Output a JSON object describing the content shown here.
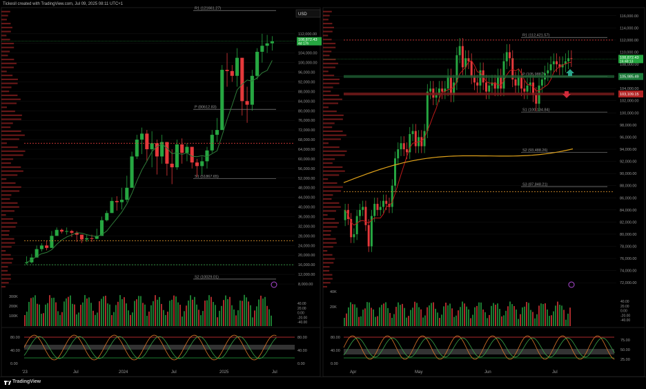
{
  "header": {
    "text": "Tickesll created with TradingView.com, Jul 09, 2025 08:11 UTC+1"
  },
  "footer": {
    "brand": "TradingView",
    "logo_icon": "tradingview-logo-icon"
  },
  "colors": {
    "bg": "#000000",
    "up": "#26a641",
    "down": "#e5393b",
    "grid": "#151515",
    "pivot_line": "#cfcfcf",
    "red_dotted": "#e03a3a",
    "orange": "#f0a030",
    "price_badge": "#26a641",
    "highlight_green": "#1e5e32",
    "highlight_red": "#7a1c1c",
    "profile": "#8a1f1f",
    "gold_ma": "#e0a21a"
  },
  "chart_data": [
    {
      "id": "left-price",
      "type": "candlestick",
      "currency": "USD",
      "timeframe_labels": [
        "'23",
        "Jul",
        "2024",
        "Jul",
        "2025",
        "Jul"
      ],
      "y_ticks": [
        8000,
        12000,
        16000,
        20000,
        24000,
        28000,
        32000,
        36000,
        40000,
        44000,
        48000,
        52000,
        56000,
        60000,
        64000,
        68000,
        72000,
        76000,
        80000,
        84000,
        88000,
        92000,
        96000,
        100000,
        104000,
        108000,
        112000
      ],
      "y_tick_labels": [
        "8,000.00",
        "12,000.00",
        "16,000.00",
        "20,000.00",
        "24,000.00",
        "28,000.00",
        "32,000.00",
        "36,000.00",
        "40,000.00",
        "44,000.00",
        "48,000.00",
        "52,000.00",
        "56,000.00",
        "60,000.00",
        "64,000.00",
        "68,000.00",
        "72,000.00",
        "76,000.00",
        "80,000.00",
        "84,000.00",
        "88,000.00",
        "92,000.00",
        "96,000.00",
        "100,000.00",
        "104,000.00",
        "108,000.00",
        "112,000.00"
      ],
      "ylim": [
        6000,
        122000
      ],
      "pivot_labels": [
        {
          "text": "R1 (121661.27)",
          "value": 121661.27
        },
        {
          "text": "P (80612.83)",
          "value": 80612.83
        },
        {
          "text": "S1 (51867.65)",
          "value": 51867.65
        },
        {
          "text": "S2 (10029.01)",
          "value": 10029.01
        }
      ],
      "price_badge": {
        "price": "108,872.43",
        "countdown": "4d 17h",
        "value": 108872.43
      },
      "closes": [
        17000,
        19000,
        22500,
        24000,
        23000,
        28000,
        30500,
        29800,
        30000,
        29300,
        28500,
        26500,
        27000,
        26800,
        28000,
        34500,
        37500,
        42500,
        42000,
        43000,
        48000,
        61000,
        68000,
        70500,
        64000,
        66500,
        61000,
        67000,
        58000,
        56500,
        66000,
        62500,
        65000,
        58500,
        57000,
        59000,
        63500,
        70000,
        72000,
        97000,
        96500,
        94500,
        102000,
        84000,
        82500,
        94500,
        104500,
        107000,
        108000,
        108872
      ],
      "highs": [
        19500,
        20500,
        24000,
        25000,
        26000,
        30000,
        31500,
        31000,
        31500,
        30500,
        30000,
        28500,
        28500,
        28500,
        31000,
        36000,
        38500,
        44000,
        44500,
        48000,
        53000,
        63000,
        70000,
        73000,
        72000,
        71500,
        68000,
        70000,
        65000,
        64000,
        68000,
        68500,
        66500,
        65000,
        60000,
        61000,
        65000,
        72000,
        77000,
        99000,
        104000,
        99000,
        106000,
        102000,
        90000,
        97000,
        106000,
        112000,
        111500,
        111000
      ],
      "lows": [
        16000,
        16500,
        19500,
        21500,
        22000,
        23000,
        29000,
        29000,
        28500,
        27500,
        25500,
        25000,
        25500,
        25500,
        26500,
        28000,
        34000,
        37500,
        38500,
        39000,
        42000,
        48000,
        60000,
        62000,
        59000,
        56500,
        53500,
        58000,
        53000,
        49500,
        55500,
        58000,
        59000,
        56000,
        52500,
        53500,
        56000,
        62500,
        67000,
        72000,
        90000,
        92000,
        90000,
        78000,
        75000,
        80000,
        93000,
        100000,
        104000,
        105000
      ],
      "volume_axis": [
        "300K",
        "200K",
        "100K"
      ],
      "rsi_axis": [
        "80.00",
        "40.00",
        "0.00"
      ],
      "right_mini_axis": [
        "40.00",
        "20.00",
        "0.00",
        "-20.00",
        "-40.00"
      ],
      "right_rsi_axis": [
        "80.00",
        "40.00",
        "0.00"
      ]
    },
    {
      "id": "right-price",
      "type": "candlestick",
      "timeframe_labels": [
        "Apr",
        "May",
        "Jun",
        "Jul"
      ],
      "y_ticks": [
        72000,
        74000,
        76000,
        78000,
        80000,
        82000,
        84000,
        86000,
        88000,
        90000,
        92000,
        94000,
        96000,
        98000,
        100000,
        102000,
        104000,
        106000,
        108000,
        110000,
        112000,
        114000,
        116000
      ],
      "y_tick_labels": [
        "72,000.00",
        "74,000.00",
        "76,000.00",
        "78,000.00",
        "80,000.00",
        "82,000.00",
        "84,000.00",
        "86,000.00",
        "88,000.00",
        "90,000.00",
        "92,000.00",
        "94,000.00",
        "96,000.00",
        "98,000.00",
        "100,000.00",
        "102,000.00",
        "104,000.00",
        "106,000.00",
        "108,000.00",
        "110,000.00",
        "112,000.00",
        "114,000.00",
        "116,000.00"
      ],
      "ylim": [
        71000,
        117000
      ],
      "pivot_labels": [
        {
          "text": "R1 (112,421.57)",
          "value": 112421.57
        },
        {
          "text": "S1 (100,134.84)",
          "value": 100134.84
        },
        {
          "text": "S2 (93,488.26)",
          "value": 93488.26
        },
        {
          "text": "S3 (87,848.21)",
          "value": 87848.21
        },
        {
          "text": "P (105,988.?)",
          "value": 105988
        }
      ],
      "price_badge": {
        "price": "108,872.43",
        "countdown": "16:48:13",
        "value": 108872.43
      },
      "green_level": {
        "price": "105,985.49",
        "value": 105985.49
      },
      "red_level": {
        "price": "103,109.15",
        "value": 103109.15
      },
      "closes": [
        84000,
        82500,
        79500,
        80000,
        83000,
        84000,
        84500,
        81500,
        78000,
        83000,
        85000,
        84000,
        84500,
        85500,
        85000,
        84500,
        88000,
        92500,
        94000,
        95000,
        94000,
        93500,
        96500,
        97000,
        94500,
        96000,
        94500,
        97000,
        103500,
        104000,
        102500,
        103000,
        104000,
        103500,
        104000,
        106000,
        103000,
        105000,
        109500,
        111000,
        107500,
        109000,
        108500,
        106000,
        105000,
        104500,
        107000,
        105000,
        103500,
        104500,
        105000,
        104000,
        106000,
        104000,
        108500,
        110000,
        109000,
        105500,
        104500,
        106000,
        104000,
        103500,
        104500,
        105000,
        103000,
        101500,
        104500,
        105500,
        106500,
        107000,
        108000,
        108500,
        108000,
        107500,
        108000,
        108500,
        109000,
        108872
      ],
      "volume_axis": [
        "40K",
        "20K"
      ],
      "right_mini_axis": [
        "40.00",
        "20.00",
        "0.00",
        "-20.00",
        "-40.00"
      ],
      "right_rsi_axis": [
        "75.00",
        "50.00",
        "25.00"
      ],
      "left_rsi_axis": [
        "80.00",
        "40.00",
        "0.00"
      ]
    }
  ]
}
